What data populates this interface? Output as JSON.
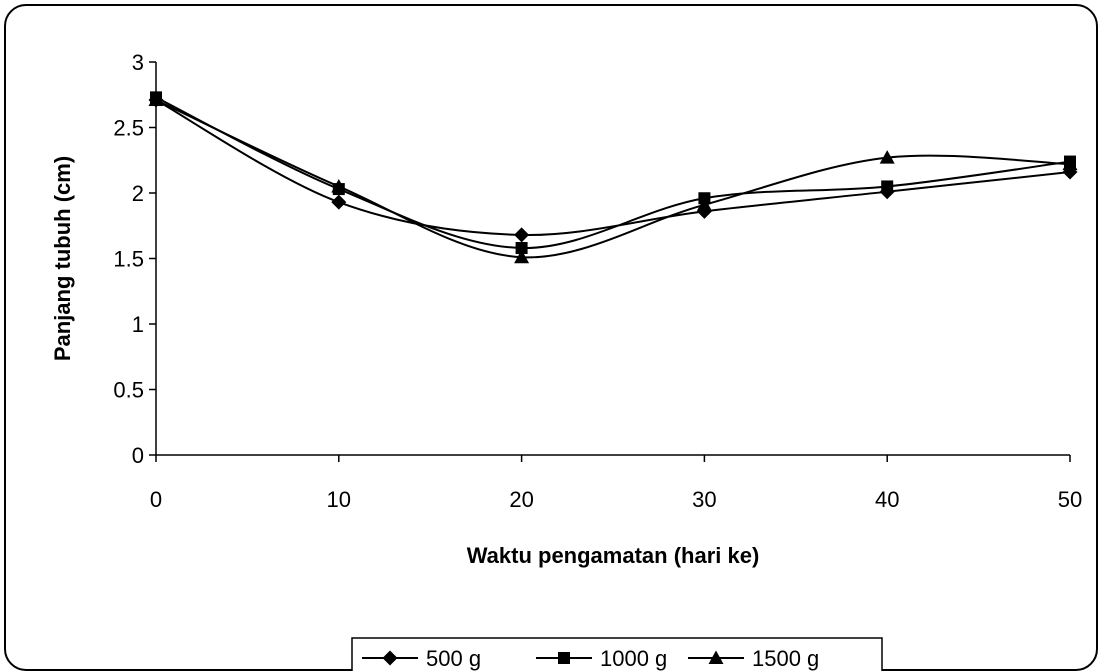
{
  "chart_data": {
    "type": "line",
    "title": "",
    "xlabel": "Waktu pengamatan (hari ke)",
    "ylabel": "Panjang tubuh (cm)",
    "x": [
      0,
      10,
      20,
      30,
      40,
      50
    ],
    "xlim": [
      0,
      50
    ],
    "ylim": [
      0,
      3
    ],
    "xticks": [
      "0",
      "10",
      "20",
      "30",
      "40",
      "50"
    ],
    "yticks": [
      "0",
      "0.5",
      "1",
      "1.5",
      "2",
      "2.5",
      "3"
    ],
    "grid": false,
    "smooth": true,
    "legend_position": "bottom",
    "series": [
      {
        "name": "500 g",
        "marker": "diamond",
        "color": "#000000",
        "values": [
          2.71,
          1.93,
          1.68,
          1.86,
          2.01,
          2.16
        ]
      },
      {
        "name": "1000 g",
        "marker": "square",
        "color": "#000000",
        "values": [
          2.73,
          2.03,
          1.58,
          1.96,
          2.05,
          2.24
        ]
      },
      {
        "name": "1500 g",
        "marker": "triangle",
        "color": "#000000",
        "values": [
          2.71,
          2.05,
          1.51,
          1.91,
          2.27,
          2.22
        ]
      }
    ]
  }
}
